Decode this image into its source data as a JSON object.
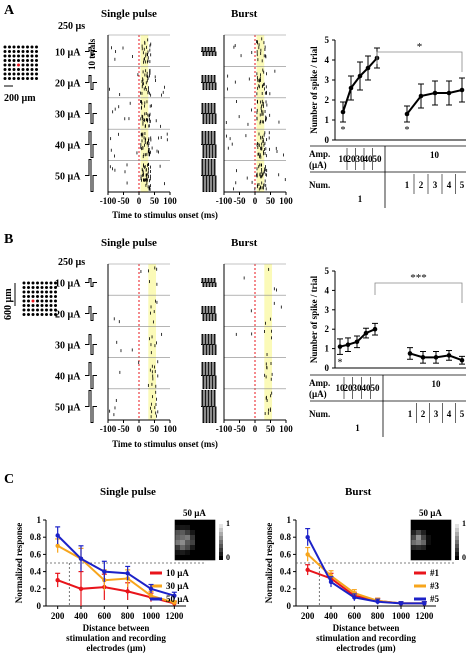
{
  "panels": {
    "A": {
      "label": "A",
      "pulse_width": "250 µs",
      "trials_label": "10 trials",
      "array_label": "200 µm",
      "raster_titles": [
        "Single pulse",
        "Burst"
      ],
      "amp_labels": [
        "10 µA",
        "20 µA",
        "30 µA",
        "40 µA",
        "50 µA"
      ],
      "raster_ticks": [
        "-100",
        "-50",
        "0",
        "50",
        "100"
      ],
      "raster_xlabel": "Time to stimulus onset (ms)",
      "table_row1_label": [
        "Amp.",
        "(µA)"
      ],
      "table_amp_values": [
        "10",
        "20",
        "30",
        "40",
        "50"
      ],
      "table_amp_burst": "10",
      "table_row2_label": "Num.",
      "table_num_single": "1",
      "table_num_burst": [
        "1",
        "2",
        "3",
        "4",
        "5"
      ],
      "sig_marker": "*",
      "low_markers": [
        "*",
        "*"
      ]
    },
    "B": {
      "label": "B",
      "pulse_width": "250 µs",
      "array_label": "600 µm",
      "raster_titles": [
        "Single pulse",
        "Burst"
      ],
      "amp_labels": [
        "10 µA",
        "20 µA",
        "30 µA",
        "40 µA",
        "50 µA"
      ],
      "raster_ticks": [
        "-100",
        "-50",
        "0",
        "50",
        "100"
      ],
      "raster_xlabel": "Time to stimulus onset (ms)",
      "table_row1_label": [
        "Amp.",
        "(µA)"
      ],
      "table_amp_values": [
        "10",
        "20",
        "30",
        "40",
        "50"
      ],
      "table_amp_burst": "10",
      "table_row2_label": "Num.",
      "table_num_single": "1",
      "table_num_burst": [
        "1",
        "2",
        "3",
        "4",
        "5"
      ],
      "sig_marker": "***",
      "low_markers": [
        "*"
      ]
    },
    "C": {
      "label": "C",
      "left_title": "Single pulse",
      "right_title": "Burst",
      "inset_label": "50 µA",
      "inset_scale": [
        "1",
        "0"
      ]
    }
  },
  "colors": {
    "black": "#000000",
    "red": "#e8141b",
    "orange": "#f7a51c",
    "blue": "#1c22c8",
    "highlight": "#fbfab8",
    "dashed_red": "#e8141b"
  },
  "chart_data": [
    {
      "type": "line",
      "panel": "A",
      "ylabel": "Number of spike / trial",
      "ylim": [
        0,
        5
      ],
      "yticks": [
        "0",
        "1",
        "2",
        "3",
        "4",
        "5"
      ],
      "series": [
        {
          "values": [
            1.4,
            2.6,
            3.2,
            3.6,
            4.1
          ],
          "errors": [
            0.5,
            0.6,
            0.7,
            0.6,
            0.5
          ]
        },
        {
          "values": [
            1.3,
            2.2,
            2.35,
            2.35,
            2.5
          ],
          "errors": [
            0.4,
            0.6,
            0.6,
            0.6,
            0.6
          ]
        }
      ]
    },
    {
      "type": "line",
      "panel": "B",
      "ylabel": "Number of spike / trial",
      "ylim": [
        0,
        5
      ],
      "yticks": [
        "0",
        "1",
        "2",
        "3",
        "4",
        "5"
      ],
      "series": [
        {
          "values": [
            1.1,
            1.2,
            1.35,
            1.8,
            2.0
          ],
          "errors": [
            0.4,
            0.35,
            0.3,
            0.25,
            0.3
          ]
        },
        {
          "values": [
            0.75,
            0.55,
            0.55,
            0.65,
            0.4
          ],
          "errors": [
            0.3,
            0.3,
            0.3,
            0.25,
            0.2
          ]
        }
      ]
    },
    {
      "type": "line",
      "panel": "C-left",
      "title": "Single pulse",
      "xlabel": "Distance between stimulation and recording electrodes (µm)",
      "ylabel": "Normalized response",
      "x": [
        200,
        400,
        600,
        800,
        1000,
        1200
      ],
      "xticks": [
        "200",
        "400",
        "600",
        "800",
        "1000",
        "1200"
      ],
      "yticks": [
        "0",
        "0.2",
        "0.4",
        "0.6",
        "0.8",
        "1"
      ],
      "ylim": [
        0,
        1
      ],
      "threshold": 0.5,
      "series": [
        {
          "name": "10 µA",
          "color": "#e8141b",
          "values": [
            0.3,
            0.2,
            0.22,
            0.17,
            0.1,
            0.03
          ],
          "errors": [
            0.08,
            0.2,
            0.15,
            0.1,
            0.05,
            0.02
          ]
        },
        {
          "name": "30 µA",
          "color": "#f7a51c",
          "values": [
            0.7,
            0.55,
            0.3,
            0.32,
            0.12,
            0.04
          ],
          "errors": [
            0.08,
            0.12,
            0.12,
            0.1,
            0.05,
            0.02
          ]
        },
        {
          "name": "50 µA",
          "color": "#1c22c8",
          "values": [
            0.82,
            0.55,
            0.4,
            0.38,
            0.2,
            0.12
          ],
          "errors": [
            0.1,
            0.15,
            0.12,
            0.08,
            0.05,
            0.04
          ]
        }
      ]
    },
    {
      "type": "line",
      "panel": "C-right",
      "title": "Burst",
      "xlabel": "Distance between stimulation and recording electrodes (µm)",
      "ylabel": "Normalized response",
      "x": [
        200,
        400,
        600,
        800,
        1000,
        1200
      ],
      "xticks": [
        "200",
        "400",
        "600",
        "800",
        "1000",
        "1200"
      ],
      "yticks": [
        "0",
        "0.2",
        "0.4",
        "0.6",
        "0.8",
        "1"
      ],
      "ylim": [
        0,
        1
      ],
      "threshold": 0.5,
      "series": [
        {
          "name": "#1",
          "color": "#e8141b",
          "values": [
            0.42,
            0.32,
            0.12,
            0.06,
            0.03,
            0.03
          ],
          "errors": [
            0.06,
            0.06,
            0.04,
            0.03,
            0.02,
            0.02
          ]
        },
        {
          "name": "#3",
          "color": "#f7a51c",
          "values": [
            0.6,
            0.35,
            0.15,
            0.06,
            0.03,
            0.03
          ],
          "errors": [
            0.08,
            0.06,
            0.04,
            0.03,
            0.02,
            0.02
          ]
        },
        {
          "name": "#5",
          "color": "#1c22c8",
          "values": [
            0.8,
            0.28,
            0.1,
            0.05,
            0.03,
            0.03
          ],
          "errors": [
            0.1,
            0.06,
            0.04,
            0.03,
            0.02,
            0.02
          ]
        }
      ]
    }
  ]
}
